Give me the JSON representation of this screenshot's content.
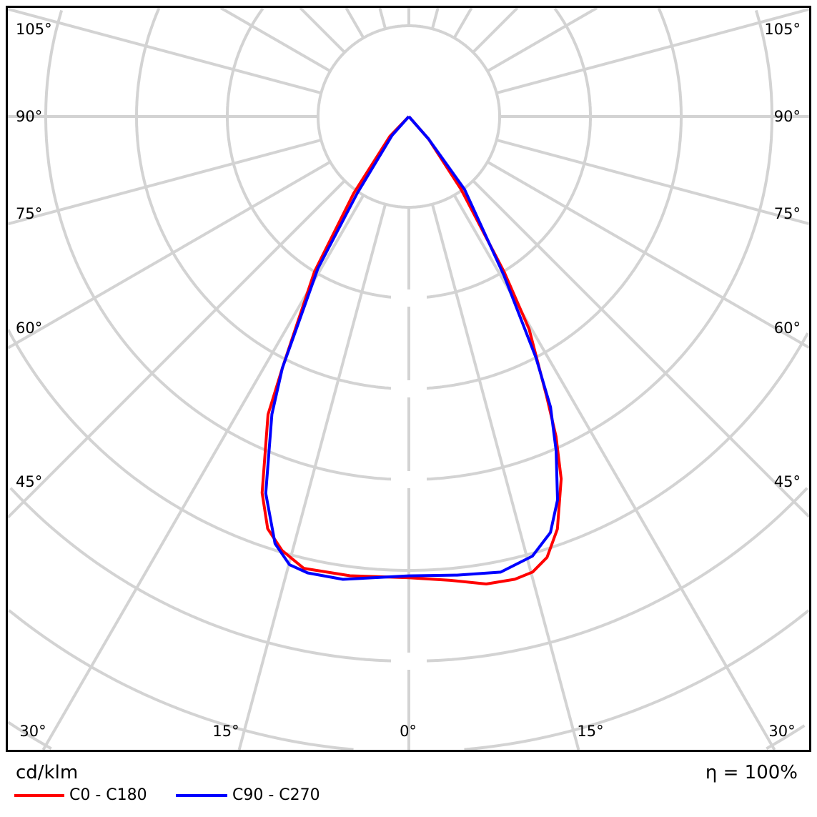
{
  "chart_data": {
    "type": "polar",
    "unit_label": "cd/klm",
    "efficiency_label": "η = 100%",
    "grid": true,
    "radial_rings": 8,
    "radial_unit": "grid rings (no value labels printed)",
    "angle_step_deg": 15,
    "angle_labels": {
      "side": [
        "105°",
        "90°",
        "75°",
        "60°",
        "45°"
      ],
      "bottom": [
        "30°",
        "15°",
        "0°",
        "15°",
        "30°"
      ]
    },
    "legend_position": "bottom-left",
    "series": [
      {
        "name": "C0 - C180",
        "color": "#ff0000",
        "points": [
          {
            "gamma": -90,
            "r": 0
          },
          {
            "gamma": -43.9,
            "r": 0.3
          },
          {
            "gamma": -35.7,
            "r": 1.04
          },
          {
            "gamma": -31.3,
            "r": 2.0
          },
          {
            "gamma": -26.7,
            "r": 3.1
          },
          {
            "gamma": -25.3,
            "r": 3.63
          },
          {
            "gamma": -21.3,
            "r": 4.45
          },
          {
            "gamma": -18.9,
            "r": 4.8
          },
          {
            "gamma": -16.3,
            "r": 4.98
          },
          {
            "gamma": -13.1,
            "r": 5.11
          },
          {
            "gamma": -7.3,
            "r": 5.1
          },
          {
            "gamma": 0,
            "r": 5.08
          },
          {
            "gamma": 5.1,
            "r": 5.13
          },
          {
            "gamma": 9.4,
            "r": 5.22
          },
          {
            "gamma": 12.9,
            "r": 5.23
          },
          {
            "gamma": 15.2,
            "r": 5.2
          },
          {
            "gamma": 17.4,
            "r": 5.09
          },
          {
            "gamma": 19.8,
            "r": 4.83
          },
          {
            "gamma": 22.8,
            "r": 4.33
          },
          {
            "gamma": 24.7,
            "r": 3.88
          },
          {
            "gamma": 26.2,
            "r": 3.44
          },
          {
            "gamma": 29.5,
            "r": 2.69
          },
          {
            "gamma": 31.5,
            "r": 2.01
          },
          {
            "gamma": 35.6,
            "r": 0.99
          },
          {
            "gamma": 41.2,
            "r": 0.33
          },
          {
            "gamma": 90,
            "r": 0
          }
        ]
      },
      {
        "name": "C90 - C270",
        "color": "#0000ff",
        "points": [
          {
            "gamma": -90,
            "r": 0
          },
          {
            "gamma": -41.6,
            "r": 0.28
          },
          {
            "gamma": -33.9,
            "r": 1.02
          },
          {
            "gamma": -30.9,
            "r": 1.95
          },
          {
            "gamma": -26.7,
            "r": 3.1
          },
          {
            "gamma": -24.7,
            "r": 3.61
          },
          {
            "gamma": -20.8,
            "r": 4.44
          },
          {
            "gamma": -17.4,
            "r": 4.93
          },
          {
            "gamma": -14.9,
            "r": 5.11
          },
          {
            "gamma": -12.5,
            "r": 5.15
          },
          {
            "gamma": -8.1,
            "r": 5.15
          },
          {
            "gamma": 0,
            "r": 5.06
          },
          {
            "gamma": 6.0,
            "r": 5.08
          },
          {
            "gamma": 11.4,
            "r": 5.12
          },
          {
            "gamma": 15.7,
            "r": 5.03
          },
          {
            "gamma": 18.8,
            "r": 4.84
          },
          {
            "gamma": 21.2,
            "r": 4.53
          },
          {
            "gamma": 23.8,
            "r": 4.02
          },
          {
            "gamma": 26.0,
            "r": 3.56
          },
          {
            "gamma": 27.8,
            "r": 3.0
          },
          {
            "gamma": 30.9,
            "r": 2.04
          },
          {
            "gamma": 37.4,
            "r": 1.01
          },
          {
            "gamma": 41.2,
            "r": 0.33
          },
          {
            "gamma": 90,
            "r": 0
          }
        ]
      }
    ]
  }
}
